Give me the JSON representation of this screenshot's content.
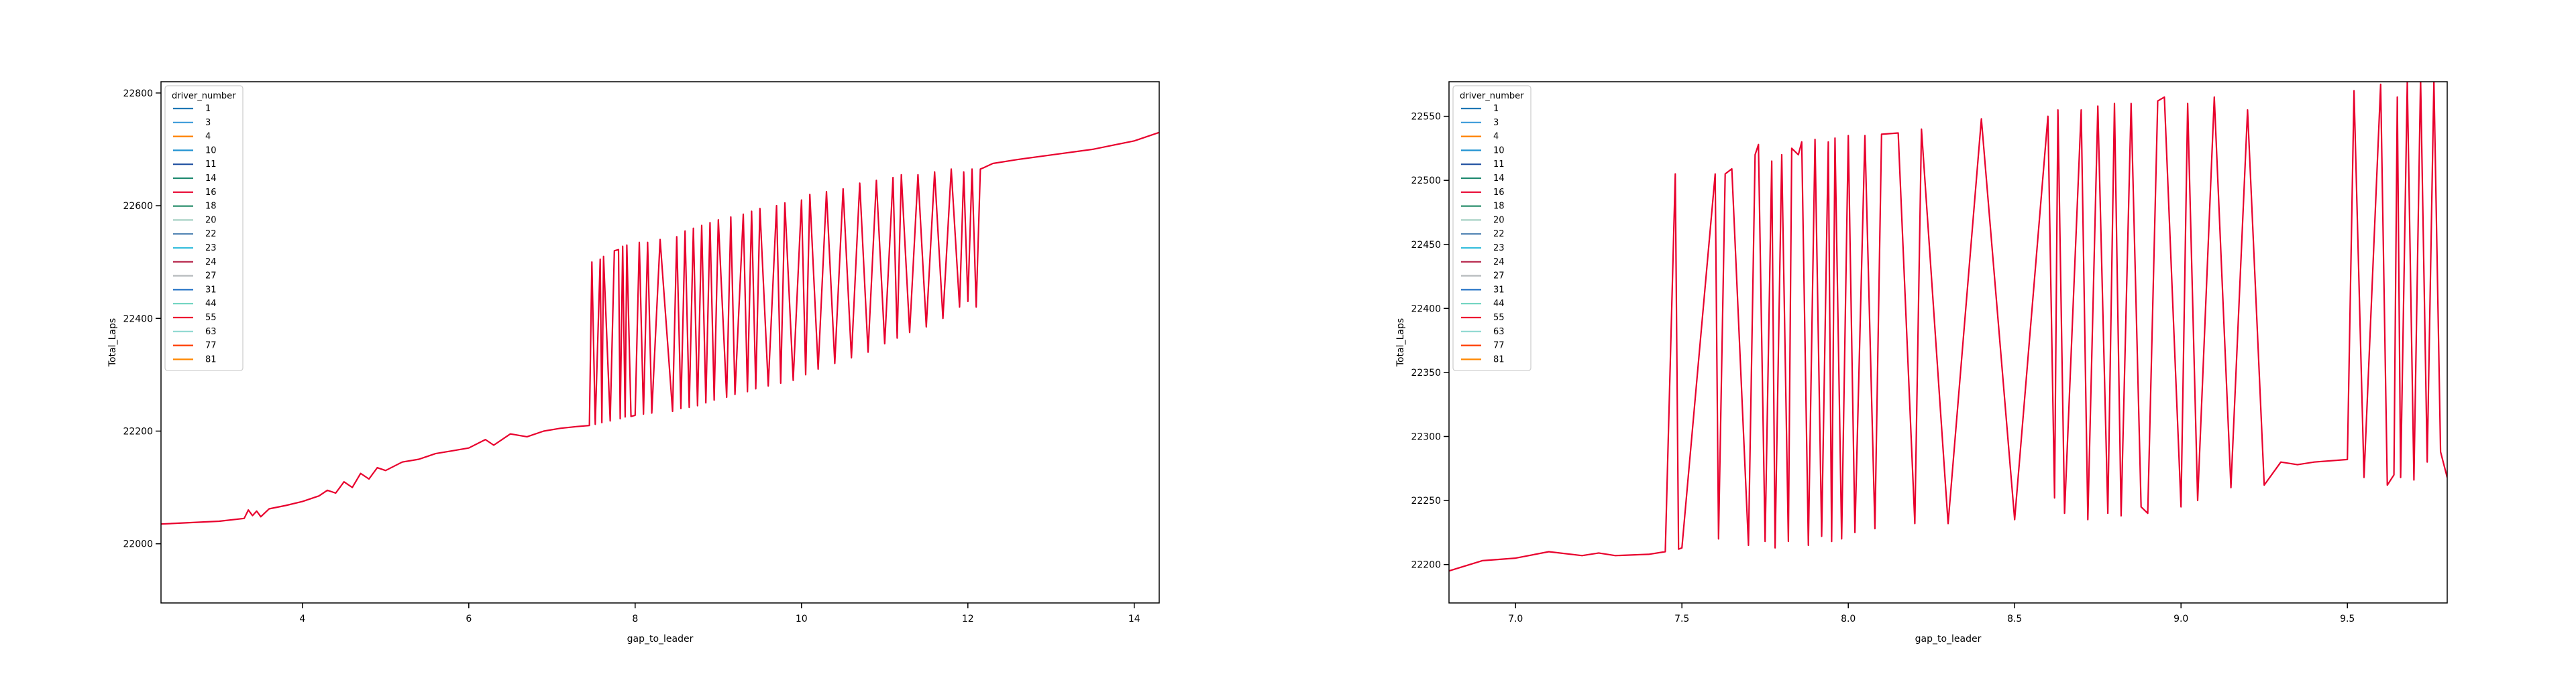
{
  "chart_data": [
    {
      "type": "line",
      "title": "",
      "xlabel": "gap_to_leader",
      "ylabel": "Total_Laps",
      "xlim": [
        2.3,
        14.3
      ],
      "ylim": [
        21895,
        22820
      ],
      "xticks": [
        4,
        6,
        8,
        10,
        12,
        14
      ],
      "yticks": [
        22000,
        22200,
        22400,
        22600,
        22800
      ],
      "legend": {
        "title": "driver_number",
        "placement": "top-left",
        "entries": [
          {
            "label": "1",
            "color": "#1f77b4"
          },
          {
            "label": "3",
            "color": "#3a9ad9"
          },
          {
            "label": "4",
            "color": "#ff8000"
          },
          {
            "label": "10",
            "color": "#2293d1"
          },
          {
            "label": "11",
            "color": "#1f4fa0"
          },
          {
            "label": "14",
            "color": "#1f8a70"
          },
          {
            "label": "16",
            "color": "#e8002d"
          },
          {
            "label": "18",
            "color": "#2c8f6e"
          },
          {
            "label": "20",
            "color": "#a6d1c4"
          },
          {
            "label": "22",
            "color": "#4a7fb0"
          },
          {
            "label": "23",
            "color": "#37bedd"
          },
          {
            "label": "24",
            "color": "#b6244a"
          },
          {
            "label": "27",
            "color": "#b6babd"
          },
          {
            "label": "31",
            "color": "#2473c6"
          },
          {
            "label": "44",
            "color": "#6cd3bf"
          },
          {
            "label": "55",
            "color": "#ed1131"
          },
          {
            "label": "63",
            "color": "#8ed8d0"
          },
          {
            "label": "77",
            "color": "#ff3c00"
          },
          {
            "label": "81",
            "color": "#ff8700"
          }
        ]
      },
      "series_color": "#e8002d",
      "series": {
        "x": [
          2.3,
          3.0,
          3.3,
          3.35,
          3.4,
          3.45,
          3.5,
          3.6,
          3.8,
          4.0,
          4.2,
          4.3,
          4.4,
          4.5,
          4.6,
          4.7,
          4.8,
          4.9,
          5.0,
          5.2,
          5.4,
          5.6,
          5.8,
          6.0,
          6.2,
          6.3,
          6.5,
          6.7,
          6.9,
          7.1,
          7.3,
          7.45,
          7.48,
          7.52,
          7.58,
          7.6,
          7.62,
          7.7,
          7.75,
          7.8,
          7.82,
          7.85,
          7.88,
          7.9,
          7.95,
          8.0,
          8.05,
          8.1,
          8.15,
          8.2,
          8.3,
          8.45,
          8.5,
          8.55,
          8.6,
          8.65,
          8.7,
          8.75,
          8.8,
          8.85,
          8.9,
          8.95,
          9.0,
          9.1,
          9.15,
          9.2,
          9.3,
          9.35,
          9.4,
          9.45,
          9.5,
          9.6,
          9.7,
          9.75,
          9.8,
          9.9,
          10.0,
          10.05,
          10.1,
          10.2,
          10.3,
          10.4,
          10.5,
          10.6,
          10.7,
          10.8,
          10.9,
          11.0,
          11.1,
          11.15,
          11.2,
          11.3,
          11.4,
          11.5,
          11.6,
          11.7,
          11.8,
          11.9,
          11.95,
          12.0,
          12.05,
          12.1,
          12.15,
          12.2,
          12.3,
          12.6,
          13.0,
          13.5,
          14.0,
          14.3
        ],
        "y": [
          22035,
          22040,
          22045,
          22060,
          22050,
          22058,
          22048,
          22062,
          22068,
          22075,
          22085,
          22095,
          22090,
          22110,
          22100,
          22125,
          22115,
          22135,
          22130,
          22145,
          22150,
          22160,
          22165,
          22170,
          22185,
          22175,
          22195,
          22190,
          22200,
          22205,
          22208,
          22210,
          22500,
          22212,
          22505,
          22215,
          22510,
          22218,
          22520,
          22522,
          22222,
          22528,
          22225,
          22530,
          22226,
          22228,
          22535,
          22230,
          22535,
          22232,
          22540,
          22235,
          22545,
          22240,
          22555,
          22242,
          22560,
          22245,
          22565,
          22250,
          22570,
          22255,
          22575,
          22260,
          22580,
          22265,
          22585,
          22270,
          22590,
          22275,
          22595,
          22280,
          22600,
          22285,
          22605,
          22290,
          22610,
          22300,
          22620,
          22310,
          22625,
          22320,
          22630,
          22330,
          22640,
          22340,
          22645,
          22355,
          22650,
          22365,
          22655,
          22375,
          22655,
          22385,
          22660,
          22400,
          22665,
          22420,
          22660,
          22430,
          22665,
          22420,
          22665,
          22668,
          22675,
          22682,
          22690,
          22700,
          22715,
          22730
        ]
      }
    },
    {
      "type": "line",
      "title": "",
      "xlabel": "gap_to_leader",
      "ylabel": "Total_Laps",
      "xlim": [
        6.8,
        9.8
      ],
      "ylim": [
        22170,
        22577
      ],
      "xticks": [
        "7.0",
        "7.5",
        "8.0",
        "8.5",
        "9.0",
        "9.5"
      ],
      "yticks": [
        22200,
        22250,
        22300,
        22350,
        22400,
        22450,
        22500,
        22550
      ],
      "legend": {
        "title": "driver_number",
        "placement": "top-left",
        "entries": [
          {
            "label": "1",
            "color": "#1f77b4"
          },
          {
            "label": "3",
            "color": "#3a9ad9"
          },
          {
            "label": "4",
            "color": "#ff8000"
          },
          {
            "label": "10",
            "color": "#2293d1"
          },
          {
            "label": "11",
            "color": "#1f4fa0"
          },
          {
            "label": "14",
            "color": "#1f8a70"
          },
          {
            "label": "16",
            "color": "#e8002d"
          },
          {
            "label": "18",
            "color": "#2c8f6e"
          },
          {
            "label": "20",
            "color": "#a6d1c4"
          },
          {
            "label": "22",
            "color": "#4a7fb0"
          },
          {
            "label": "23",
            "color": "#37bedd"
          },
          {
            "label": "24",
            "color": "#b6244a"
          },
          {
            "label": "27",
            "color": "#b6babd"
          },
          {
            "label": "31",
            "color": "#2473c6"
          },
          {
            "label": "44",
            "color": "#6cd3bf"
          },
          {
            "label": "55",
            "color": "#ed1131"
          },
          {
            "label": "63",
            "color": "#8ed8d0"
          },
          {
            "label": "77",
            "color": "#ff3c00"
          },
          {
            "label": "81",
            "color": "#ff8700"
          }
        ]
      },
      "series_color": "#e8002d",
      "series": {
        "x": [
          6.8,
          6.9,
          7.0,
          7.1,
          7.2,
          7.25,
          7.3,
          7.4,
          7.45,
          7.48,
          7.49,
          7.5,
          7.6,
          7.61,
          7.63,
          7.65,
          7.7,
          7.72,
          7.73,
          7.75,
          7.77,
          7.78,
          7.8,
          7.82,
          7.83,
          7.85,
          7.86,
          7.88,
          7.9,
          7.92,
          7.94,
          7.95,
          7.96,
          7.98,
          8.0,
          8.02,
          8.05,
          8.08,
          8.1,
          8.15,
          8.2,
          8.22,
          8.3,
          8.4,
          8.5,
          8.6,
          8.62,
          8.63,
          8.65,
          8.7,
          8.72,
          8.75,
          8.78,
          8.8,
          8.82,
          8.85,
          8.88,
          8.9,
          8.93,
          8.95,
          9.0,
          9.02,
          9.05,
          9.1,
          9.15,
          9.2,
          9.25,
          9.3,
          9.35,
          9.4,
          9.5,
          9.52,
          9.55,
          9.6,
          9.62,
          9.64,
          9.65,
          9.66,
          9.68,
          9.7,
          9.72,
          9.74,
          9.76,
          9.78,
          9.8
        ],
        "y": [
          22195,
          22203,
          22205,
          22210,
          22207,
          22209,
          22207,
          22208,
          22210,
          22505,
          22212,
          22213,
          22505,
          22220,
          22505,
          22509,
          22215,
          22520,
          22528,
          22218,
          22515,
          22213,
          22520,
          22218,
          22525,
          22520,
          22530,
          22215,
          22532,
          22222,
          22530,
          22218,
          22533,
          22220,
          22535,
          22225,
          22535,
          22228,
          22536,
          22537,
          22232,
          22540,
          22232,
          22548,
          22235,
          22550,
          22252,
          22555,
          22240,
          22555,
          22235,
          22558,
          22240,
          22560,
          22238,
          22560,
          22245,
          22240,
          22562,
          22565,
          22245,
          22560,
          22250,
          22565,
          22260,
          22555,
          22262,
          22280,
          22278,
          22280,
          22282,
          22570,
          22268,
          22575,
          22262,
          22270,
          22565,
          22268,
          22577,
          22266,
          22580,
          22280,
          22578,
          22288,
          22268
        ]
      }
    }
  ]
}
